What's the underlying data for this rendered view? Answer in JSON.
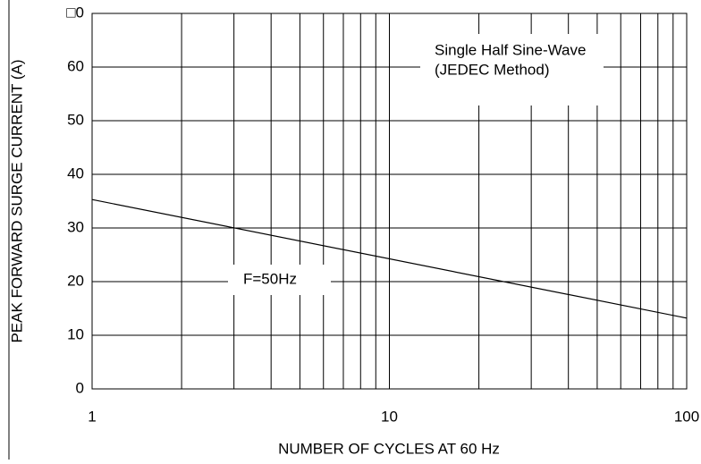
{
  "chart_data": {
    "type": "line",
    "x_label": "NUMBER OF CYCLES AT 60 Hz",
    "y_label": "PEAK FORWARD SURGE CURRENT (A)",
    "annotations": [
      "Single Half Sine-Wave",
      "(JEDEC Method)",
      "F=50Hz"
    ],
    "x": [
      1,
      100
    ],
    "series": [
      {
        "name": "F=50Hz",
        "color": "#000000",
        "values": [
          35.3,
          13.2
        ]
      }
    ],
    "x_log": true,
    "xlim": [
      1,
      100
    ],
    "xticks": [
      1,
      10,
      100
    ],
    "xminorticks": [
      2,
      3,
      4,
      5,
      6,
      7,
      8,
      9,
      20,
      30,
      40,
      50,
      60,
      70,
      80,
      90
    ],
    "ylim": [
      0,
      70
    ],
    "yticks": [
      0,
      10,
      20,
      30,
      40,
      50,
      60,
      {
        "value": 70,
        "label": "□0"
      }
    ],
    "grid": true
  }
}
